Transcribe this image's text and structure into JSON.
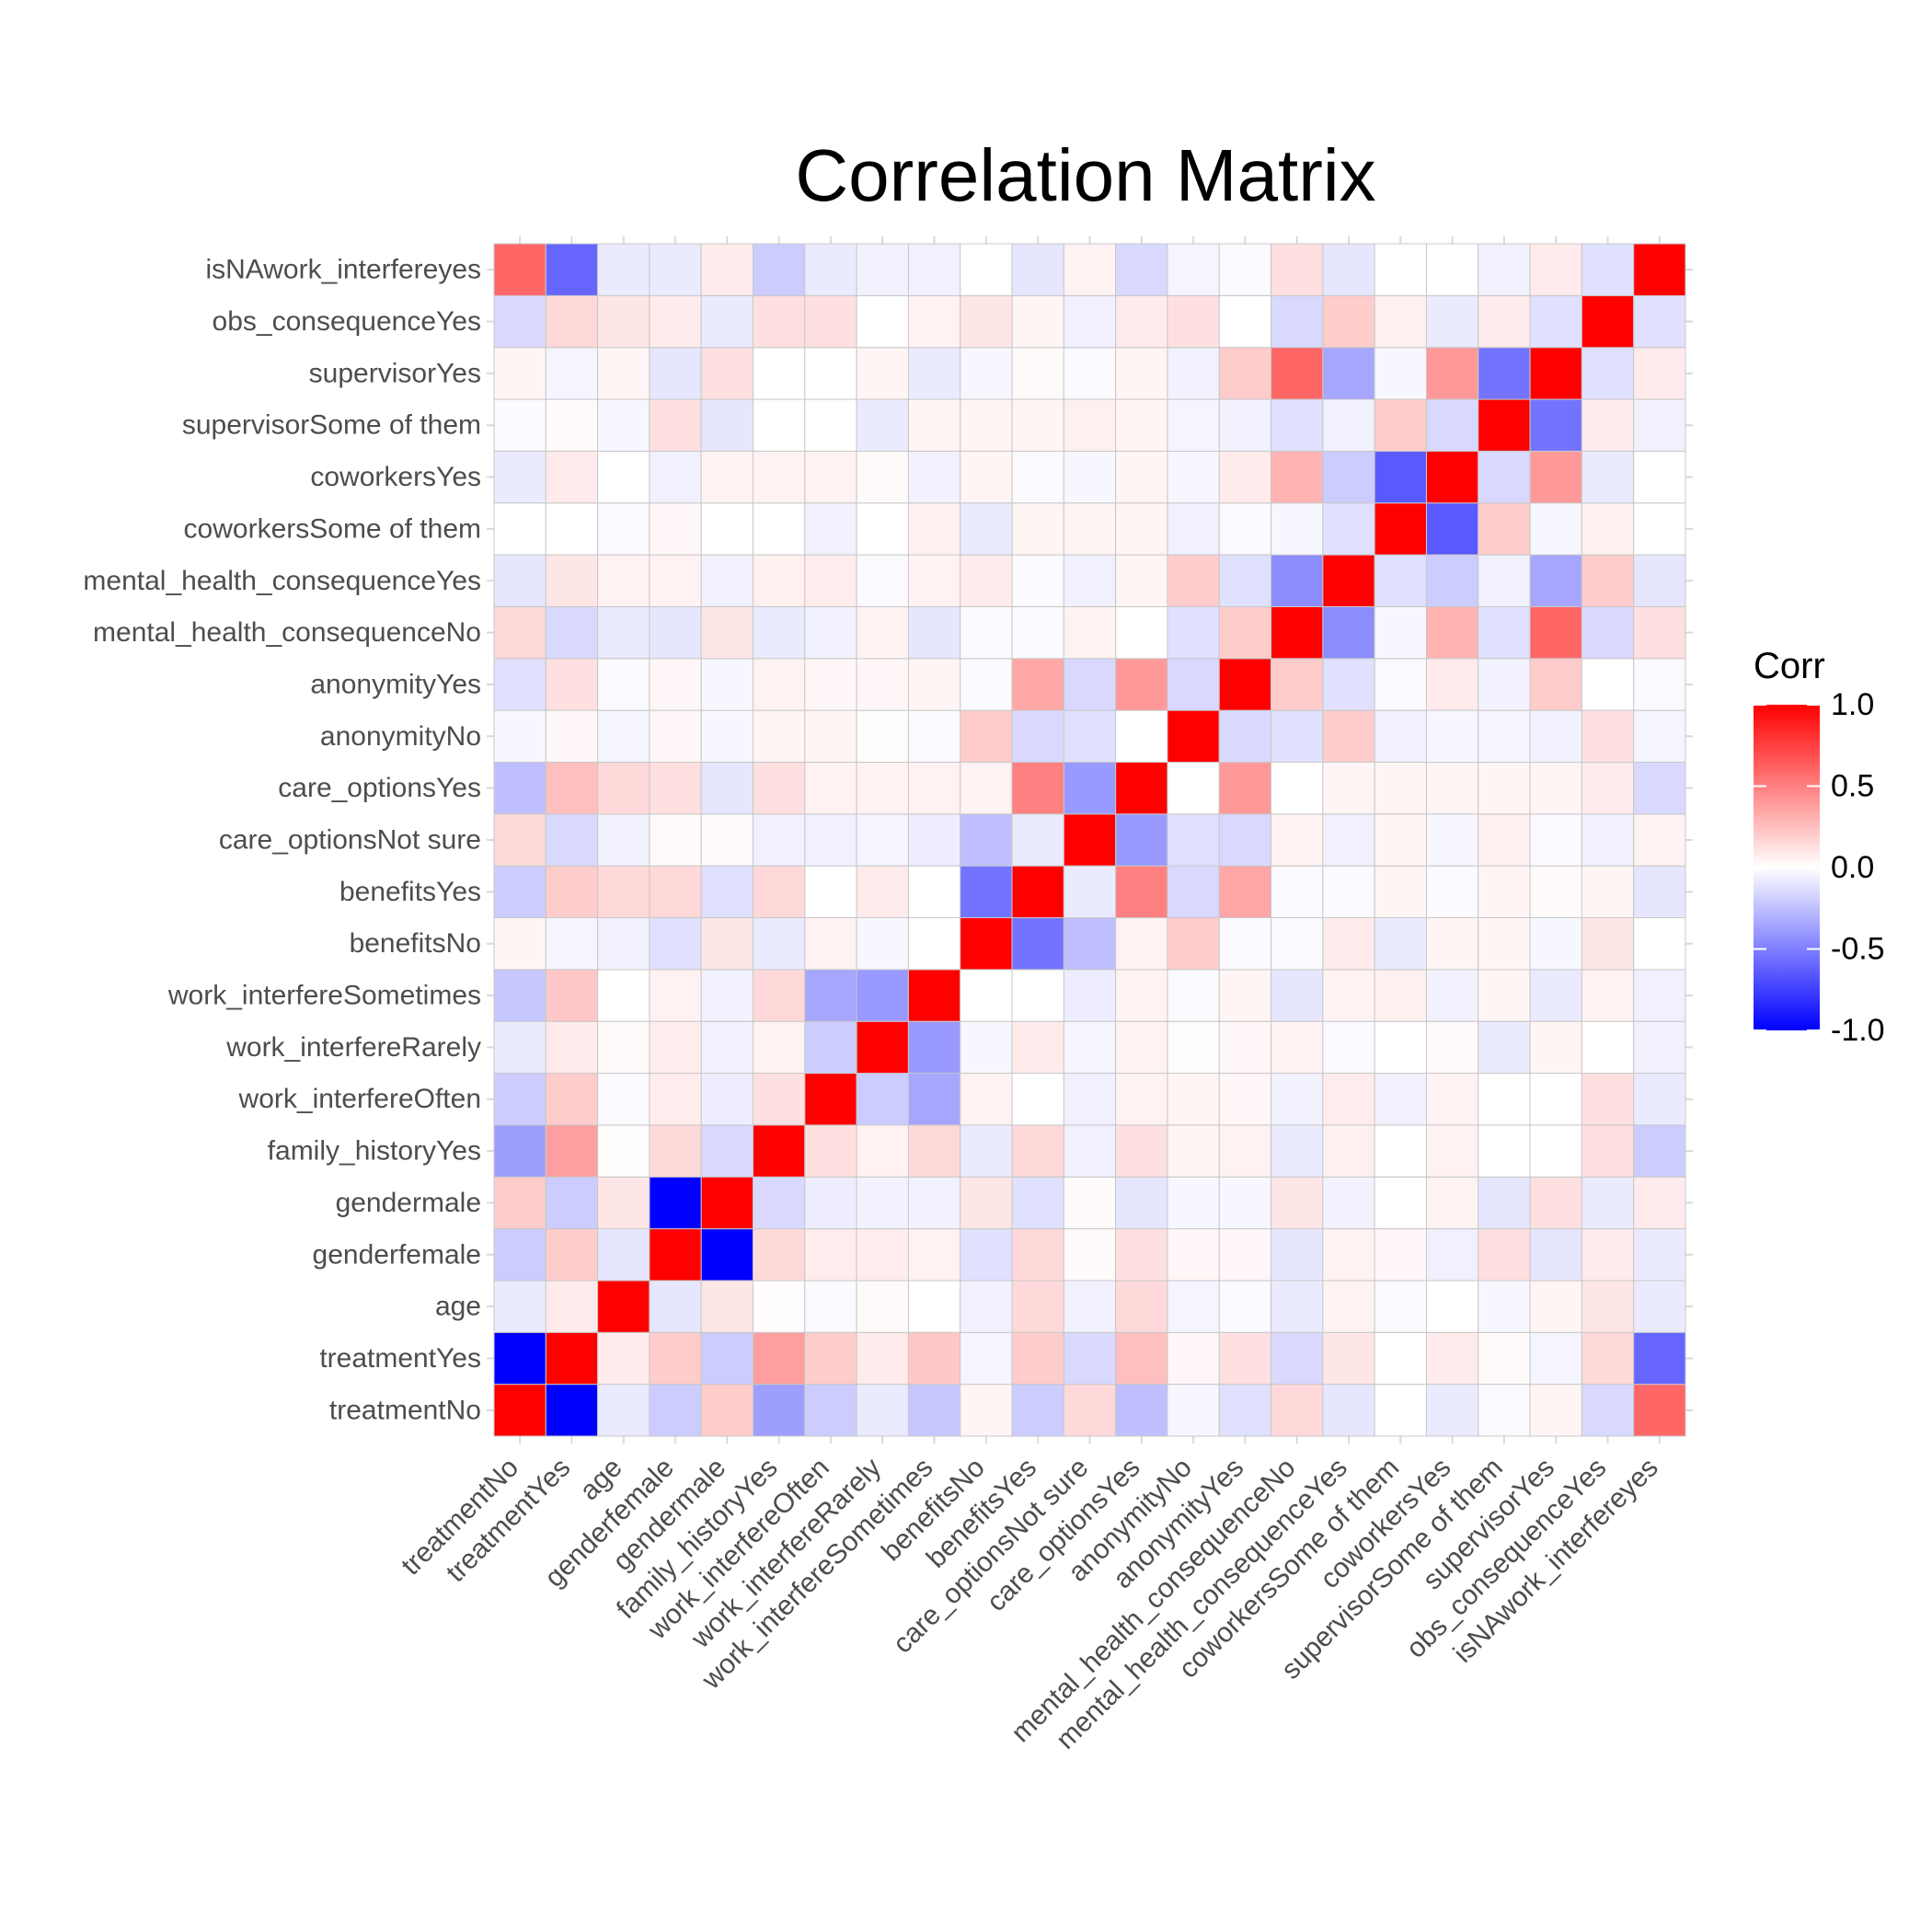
{
  "chart_data": {
    "type": "heatmap",
    "title": "Correlation Matrix",
    "variables": [
      "treatmentNo",
      "treatmentYes",
      "age",
      "genderfemale",
      "gendermale",
      "family_historyYes",
      "work_interfereOften",
      "work_interfereRarely",
      "work_interfereSometimes",
      "benefitsNo",
      "benefitsYes",
      "care_optionsNot sure",
      "care_optionsYes",
      "anonymityNo",
      "anonymityYes",
      "mental_health_consequenceNo",
      "mental_health_consequenceYes",
      "coworkersSome of them",
      "coworkersYes",
      "supervisorSome of them",
      "supervisorYes",
      "obs_consequenceYes",
      "isNAwork_interfereyes"
    ],
    "values": [
      [
        1.0,
        -1.0,
        -0.08,
        -0.2,
        0.2,
        -0.38,
        -0.2,
        -0.08,
        -0.22,
        0.04,
        -0.2,
        0.15,
        -0.25,
        -0.03,
        -0.12,
        0.15,
        -0.1,
        0.0,
        -0.08,
        -0.02,
        0.04,
        -0.15,
        0.6
      ],
      [
        -1.0,
        1.0,
        0.08,
        0.2,
        -0.2,
        0.38,
        0.2,
        0.08,
        0.22,
        -0.04,
        0.2,
        -0.15,
        0.25,
        0.03,
        0.12,
        -0.15,
        0.1,
        0.0,
        0.08,
        0.02,
        -0.04,
        0.15,
        -0.6
      ],
      [
        -0.08,
        0.08,
        1.0,
        -0.1,
        0.1,
        0.01,
        -0.02,
        0.02,
        0.0,
        -0.05,
        0.15,
        -0.05,
        0.15,
        -0.04,
        -0.02,
        -0.08,
        0.05,
        -0.02,
        0.0,
        -0.03,
        0.04,
        0.1,
        -0.08
      ],
      [
        -0.2,
        0.2,
        -0.1,
        1.0,
        -1.0,
        0.15,
        0.07,
        0.07,
        0.05,
        -0.12,
        0.15,
        0.02,
        0.12,
        0.03,
        0.03,
        -0.1,
        0.05,
        0.03,
        -0.06,
        0.12,
        -0.1,
        0.08,
        -0.08
      ],
      [
        0.2,
        -0.2,
        0.1,
        -1.0,
        1.0,
        -0.15,
        -0.07,
        -0.05,
        -0.05,
        0.1,
        -0.12,
        0.02,
        -0.1,
        -0.03,
        -0.03,
        0.1,
        -0.05,
        0.0,
        0.05,
        -0.1,
        0.12,
        -0.08,
        0.08
      ],
      [
        -0.38,
        0.38,
        0.01,
        0.15,
        -0.15,
        1.0,
        0.12,
        0.05,
        0.15,
        -0.08,
        0.15,
        -0.06,
        0.12,
        0.04,
        0.05,
        -0.08,
        0.06,
        0.0,
        0.05,
        0.0,
        0.0,
        0.12,
        -0.2
      ],
      [
        -0.2,
        0.2,
        -0.02,
        0.07,
        -0.07,
        0.12,
        1.0,
        -0.2,
        -0.35,
        0.05,
        0.0,
        -0.06,
        0.05,
        0.04,
        0.03,
        -0.05,
        0.07,
        -0.05,
        0.05,
        0.0,
        0.0,
        0.12,
        -0.08
      ],
      [
        -0.08,
        0.08,
        0.02,
        0.07,
        -0.05,
        0.05,
        -0.2,
        1.0,
        -0.4,
        -0.03,
        0.08,
        -0.04,
        0.05,
        0.01,
        0.03,
        0.05,
        -0.02,
        0.0,
        0.02,
        -0.08,
        0.04,
        0.0,
        -0.05
      ],
      [
        -0.22,
        0.22,
        0.0,
        0.05,
        -0.05,
        0.15,
        -0.35,
        -0.4,
        1.0,
        0.0,
        0.0,
        -0.07,
        0.05,
        -0.02,
        0.04,
        -0.1,
        0.05,
        0.06,
        -0.05,
        0.04,
        -0.08,
        0.05,
        -0.06
      ],
      [
        0.04,
        -0.04,
        -0.05,
        -0.12,
        0.1,
        -0.08,
        0.05,
        -0.03,
        0.0,
        1.0,
        -0.55,
        -0.25,
        0.05,
        0.2,
        -0.02,
        -0.02,
        0.08,
        -0.08,
        0.04,
        0.04,
        -0.03,
        0.1,
        0.0
      ],
      [
        -0.2,
        0.2,
        0.15,
        0.15,
        -0.12,
        0.15,
        0.0,
        0.08,
        0.0,
        -0.55,
        1.0,
        -0.08,
        0.5,
        -0.15,
        0.35,
        -0.02,
        -0.02,
        0.04,
        -0.02,
        0.04,
        0.02,
        0.04,
        -0.1
      ],
      [
        0.15,
        -0.15,
        -0.05,
        0.02,
        0.02,
        -0.06,
        -0.06,
        -0.04,
        -0.07,
        -0.25,
        -0.08,
        1.0,
        -0.4,
        -0.12,
        -0.15,
        0.05,
        -0.06,
        0.04,
        -0.03,
        0.06,
        -0.02,
        -0.06,
        0.05
      ],
      [
        -0.25,
        0.25,
        0.15,
        0.12,
        -0.1,
        0.12,
        0.05,
        0.05,
        0.05,
        0.05,
        0.5,
        -0.4,
        1.0,
        0.0,
        0.4,
        0.0,
        0.04,
        0.04,
        0.04,
        0.04,
        0.04,
        0.08,
        -0.15
      ],
      [
        -0.03,
        0.03,
        -0.04,
        0.03,
        -0.03,
        0.04,
        0.04,
        0.01,
        -0.02,
        0.2,
        -0.15,
        -0.12,
        0.0,
        1.0,
        -0.15,
        -0.12,
        0.2,
        -0.06,
        -0.03,
        -0.04,
        -0.05,
        0.12,
        -0.04
      ],
      [
        -0.12,
        0.12,
        -0.02,
        0.03,
        -0.03,
        0.05,
        0.03,
        0.03,
        0.04,
        -0.02,
        0.35,
        -0.15,
        0.4,
        -0.15,
        1.0,
        0.2,
        -0.12,
        -0.02,
        0.08,
        -0.05,
        0.2,
        0.0,
        -0.02
      ],
      [
        0.15,
        -0.15,
        -0.08,
        -0.1,
        0.1,
        -0.08,
        -0.05,
        0.05,
        -0.1,
        -0.02,
        -0.02,
        0.05,
        0.0,
        -0.12,
        0.2,
        1.0,
        -0.45,
        -0.03,
        0.3,
        -0.12,
        0.6,
        -0.15,
        0.12
      ],
      [
        -0.1,
        0.1,
        0.05,
        0.05,
        -0.05,
        0.06,
        0.07,
        -0.02,
        0.05,
        0.08,
        -0.02,
        -0.06,
        0.04,
        0.2,
        -0.12,
        -0.45,
        1.0,
        -0.12,
        -0.2,
        -0.05,
        -0.35,
        0.2,
        -0.1
      ],
      [
        0.0,
        0.0,
        -0.02,
        0.03,
        0.0,
        0.0,
        -0.05,
        0.0,
        0.06,
        -0.08,
        0.04,
        0.04,
        0.04,
        -0.06,
        -0.02,
        -0.03,
        -0.12,
        1.0,
        -0.65,
        0.2,
        -0.03,
        0.06,
        0.0
      ],
      [
        -0.08,
        0.08,
        0.0,
        -0.06,
        0.05,
        0.05,
        0.05,
        0.02,
        -0.05,
        0.04,
        -0.02,
        -0.03,
        0.04,
        -0.03,
        0.08,
        0.3,
        -0.2,
        -0.65,
        1.0,
        -0.15,
        0.4,
        -0.08,
        0.0
      ],
      [
        -0.02,
        0.02,
        -0.03,
        0.12,
        -0.1,
        0.0,
        0.0,
        -0.08,
        0.04,
        0.04,
        0.04,
        0.06,
        0.04,
        -0.04,
        -0.05,
        -0.12,
        -0.05,
        0.2,
        -0.15,
        1.0,
        -0.55,
        0.08,
        -0.05
      ],
      [
        0.04,
        -0.04,
        0.04,
        -0.1,
        0.12,
        0.0,
        0.0,
        0.04,
        -0.08,
        -0.03,
        0.02,
        -0.02,
        0.04,
        -0.05,
        0.2,
        0.6,
        -0.35,
        -0.03,
        0.4,
        -0.55,
        1.0,
        -0.12,
        0.08
      ],
      [
        -0.15,
        0.15,
        0.1,
        0.08,
        -0.08,
        0.12,
        0.12,
        0.0,
        0.05,
        0.1,
        0.04,
        -0.06,
        0.08,
        0.12,
        0.0,
        -0.15,
        0.2,
        0.06,
        -0.08,
        0.08,
        -0.12,
        1.0,
        -0.12
      ],
      [
        0.6,
        -0.6,
        -0.08,
        -0.08,
        0.08,
        -0.2,
        -0.08,
        -0.05,
        -0.06,
        0.0,
        -0.1,
        0.05,
        -0.15,
        -0.04,
        -0.02,
        0.12,
        -0.1,
        0.0,
        0.0,
        -0.05,
        0.08,
        -0.12,
        1.0
      ]
    ],
    "legend": {
      "title": "Corr",
      "ticks": [
        {
          "value": 1.0,
          "label": "1.0"
        },
        {
          "value": 0.5,
          "label": "0.5"
        },
        {
          "value": 0.0,
          "label": "0.0"
        },
        {
          "value": -0.5,
          "label": "-0.5"
        },
        {
          "value": -1.0,
          "label": "-1.0"
        }
      ],
      "placement": "right"
    },
    "scale": {
      "low": "#0000FF",
      "mid": "#FFFFFF",
      "high": "#FF0000",
      "limits": [
        -1,
        1
      ]
    },
    "grid_color": "#d9d9d9",
    "cell_border": "#c8c8c8"
  }
}
